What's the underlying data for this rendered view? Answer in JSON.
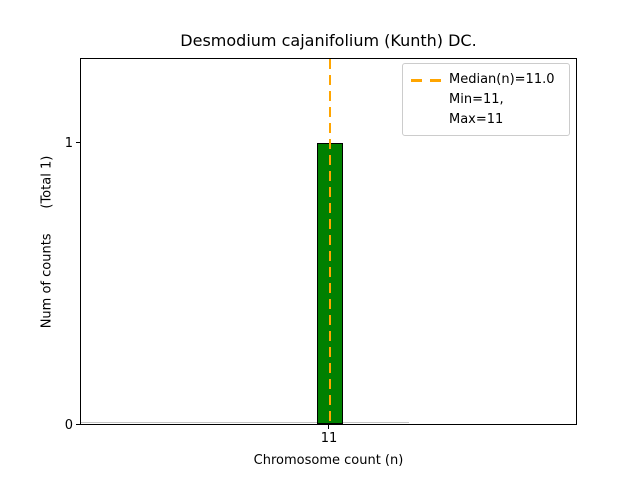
{
  "chart_data": {
    "type": "bar",
    "title": "Desmodium cajanifolium (Kunth) DC.",
    "xlabel": "Chromosome count (n)",
    "ylabel": "Num of counts      (Total 1)",
    "categories": [
      11
    ],
    "values": [
      1
    ],
    "xtick_labels": [
      "11"
    ],
    "ytick_labels": [
      "0",
      "1"
    ],
    "ylim": [
      0,
      1.3
    ],
    "total_counts": 1,
    "median_n": 11.0,
    "min_n": 11,
    "max_n": 11,
    "legend": [
      "Median(n)=11.0",
      "Min=11, Max=11"
    ],
    "legend_position": "upper right",
    "grid": false,
    "bar_color": "#008000",
    "bar_edge_color": "#000000",
    "median_line_color": "#ffa500",
    "median_line_style": "dashed",
    "background_color": "#ffffff"
  }
}
